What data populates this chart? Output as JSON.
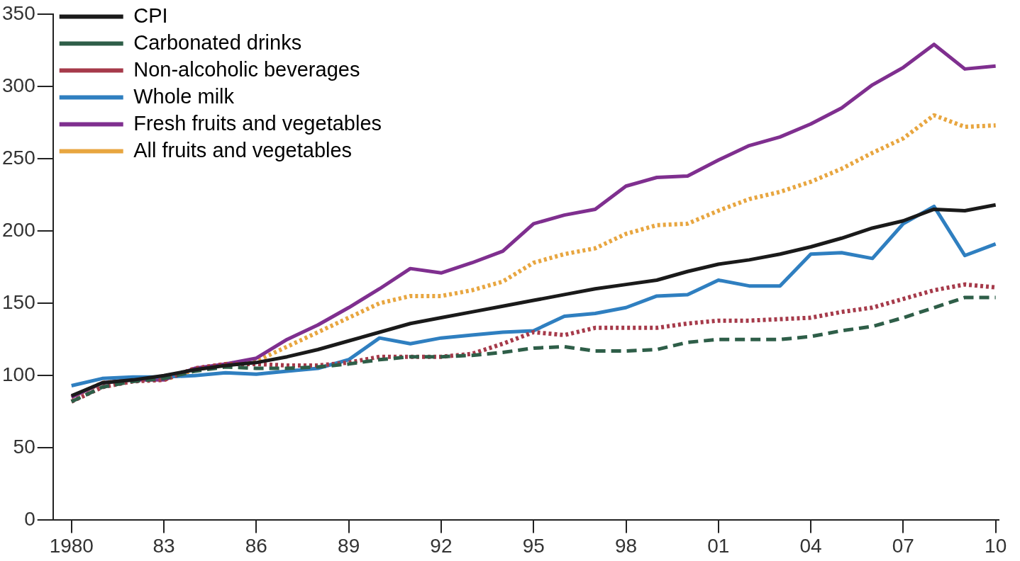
{
  "chart_data": {
    "type": "line",
    "x": [
      1980,
      1981,
      1982,
      1983,
      1984,
      1985,
      1986,
      1987,
      1988,
      1989,
      1990,
      1991,
      1992,
      1993,
      1994,
      1995,
      1996,
      1997,
      1998,
      1999,
      2000,
      2001,
      2002,
      2003,
      2004,
      2005,
      2006,
      2007,
      2008,
      2009,
      2010
    ],
    "series": [
      {
        "name": "CPI",
        "color": "#1a1a1a",
        "line_style": "solid",
        "values": [
          86,
          95,
          97,
          100,
          104,
          107,
          109,
          113,
          118,
          124,
          130,
          136,
          140,
          144,
          148,
          152,
          156,
          160,
          163,
          166,
          172,
          177,
          180,
          184,
          189,
          195,
          202,
          207,
          215,
          214,
          218
        ]
      },
      {
        "name": "Carbonated drinks",
        "color": "#2e5e48",
        "line_style": "dashed",
        "values": [
          82,
          92,
          96,
          98,
          103,
          106,
          105,
          105,
          106,
          108,
          111,
          113,
          113,
          114,
          116,
          119,
          120,
          117,
          117,
          118,
          123,
          125,
          125,
          125,
          127,
          131,
          134,
          140,
          147,
          154,
          154
        ]
      },
      {
        "name": "Non-alcoholic beverages",
        "color": "#a63a4a",
        "line_style": "dotted",
        "values": [
          82,
          92,
          96,
          97,
          105,
          108,
          108,
          107,
          107,
          109,
          113,
          113,
          113,
          115,
          122,
          130,
          128,
          133,
          133,
          133,
          136,
          138,
          138,
          139,
          140,
          144,
          147,
          153,
          159,
          163,
          161
        ]
      },
      {
        "name": "Whole milk",
        "color": "#2f7fc0",
        "line_style": "solid",
        "values": [
          93,
          98,
          99,
          99,
          100,
          102,
          101,
          103,
          105,
          111,
          126,
          122,
          126,
          128,
          130,
          131,
          141,
          143,
          147,
          155,
          156,
          166,
          162,
          162,
          184,
          185,
          181,
          205,
          217,
          183,
          191
        ]
      },
      {
        "name": "Fresh fruits and vegetables",
        "color": "#7f2f8f",
        "line_style": "solid",
        "values": [
          85,
          95,
          97,
          97,
          105,
          108,
          112,
          125,
          135,
          147,
          160,
          174,
          171,
          178,
          186,
          205,
          211,
          215,
          231,
          237,
          238,
          249,
          259,
          265,
          274,
          285,
          301,
          313,
          329,
          312,
          314
        ]
      },
      {
        "name": "All fruits and vegetables",
        "color": "#e8a640",
        "line_style": "dotted",
        "values": [
          85,
          95,
          97,
          97,
          104,
          108,
          110,
          120,
          130,
          140,
          150,
          155,
          155,
          159,
          165,
          178,
          184,
          188,
          198,
          204,
          205,
          214,
          222,
          227,
          234,
          243,
          254,
          264,
          280,
          272,
          273
        ]
      }
    ],
    "xlim": [
      1979.4,
      2010.1
    ],
    "xticks": [
      {
        "value": 1980,
        "label": "1980"
      },
      {
        "value": 1983,
        "label": "83"
      },
      {
        "value": 1986,
        "label": "86"
      },
      {
        "value": 1989,
        "label": "89"
      },
      {
        "value": 1992,
        "label": "92"
      },
      {
        "value": 1995,
        "label": "95"
      },
      {
        "value": 1998,
        "label": "98"
      },
      {
        "value": 2001,
        "label": "01"
      },
      {
        "value": 2004,
        "label": "04"
      },
      {
        "value": 2007,
        "label": "07"
      },
      {
        "value": 2010,
        "label": "10"
      }
    ],
    "ylim": [
      0,
      350
    ],
    "yticks": [
      0,
      50,
      100,
      150,
      200,
      250,
      300,
      350
    ],
    "grid": false,
    "legend": "top left",
    "marker": "none"
  }
}
